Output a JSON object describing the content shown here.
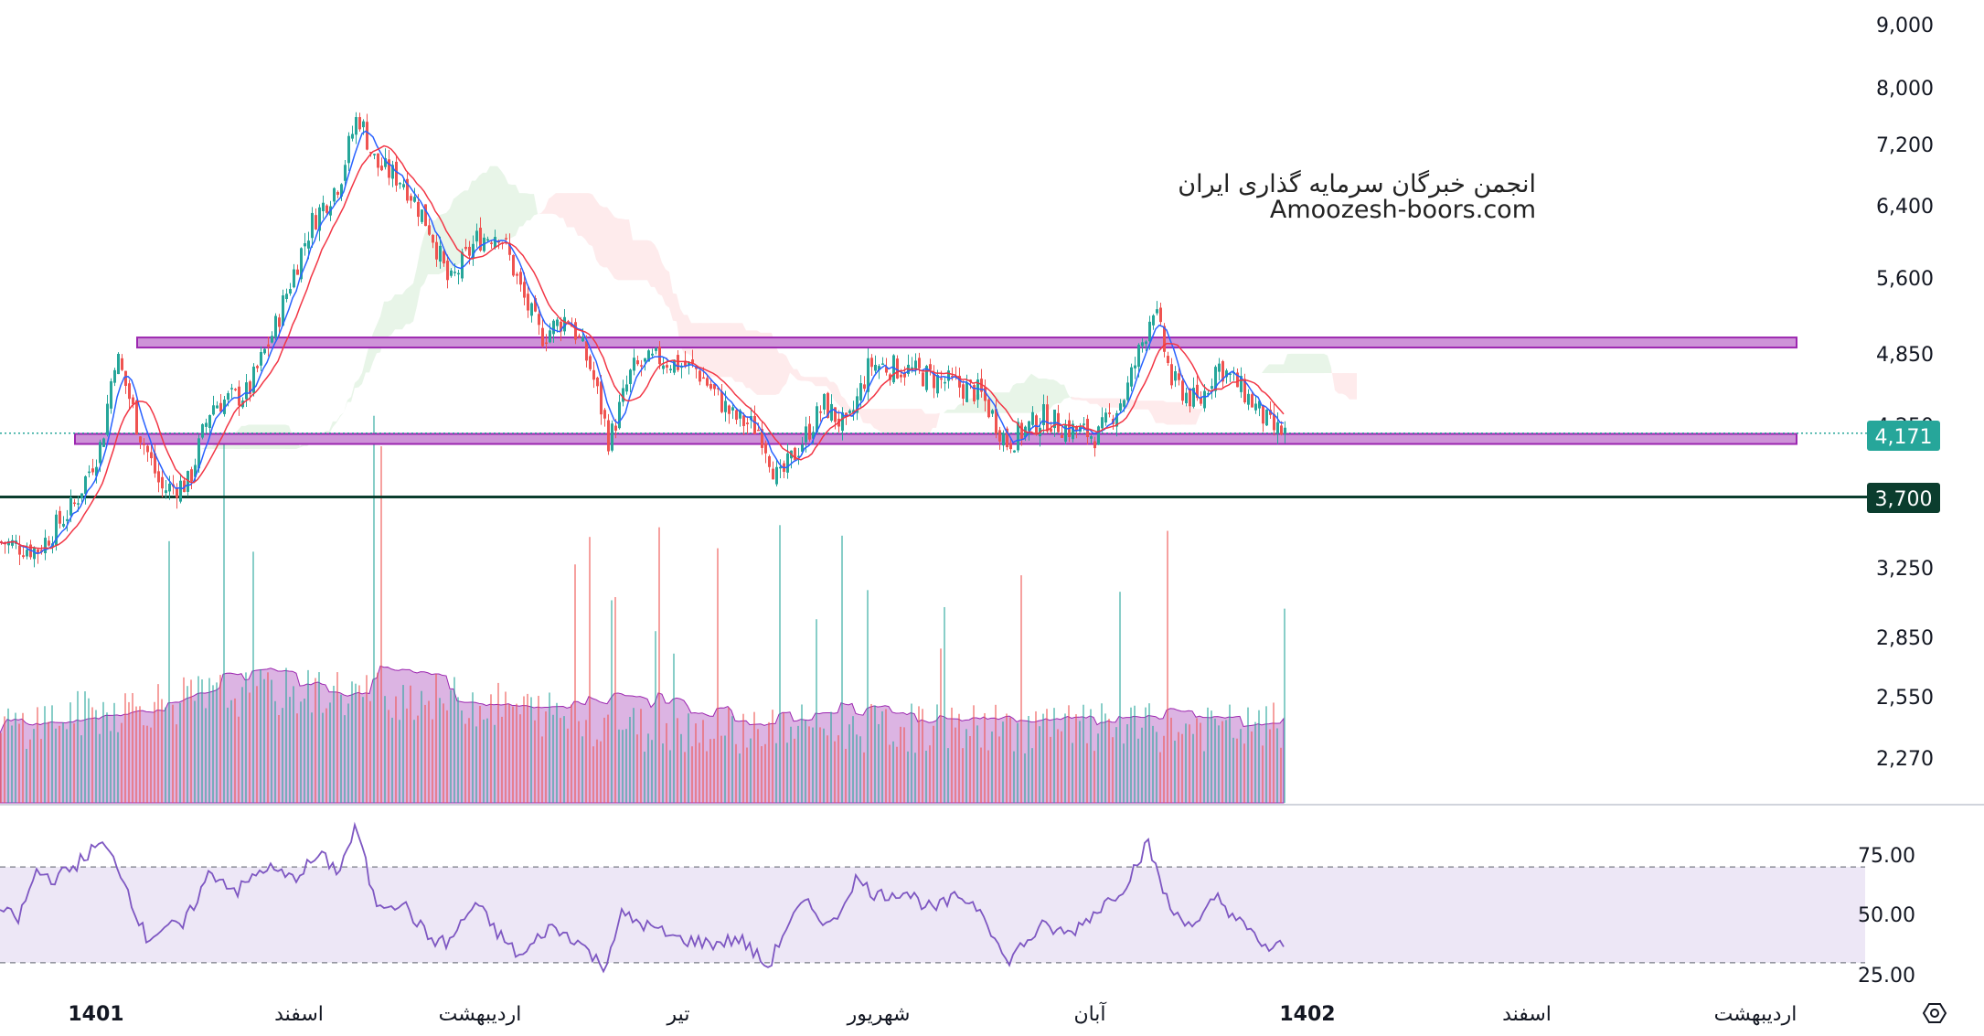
{
  "watermark": {
    "line1": "انجمن خبرگان سرمایه گذاری ایران",
    "line2": "Amoozesh-boors.com"
  },
  "price_axis": {
    "ticks": [
      "9,000",
      "8,000",
      "7,200",
      "6,400",
      "5,600",
      "4,850",
      "4,250",
      "3,250",
      "2,850",
      "2,550",
      "2,270"
    ]
  },
  "rsi_axis": {
    "ticks": [
      "75.00",
      "50.00",
      "25.00"
    ]
  },
  "time_axis": {
    "labels": [
      {
        "text": "1401",
        "bold": true
      },
      {
        "text": "اسفند",
        "bold": false
      },
      {
        "text": "اردیبهشت",
        "bold": false
      },
      {
        "text": "تیر",
        "bold": false
      },
      {
        "text": "شهریور",
        "bold": false
      },
      {
        "text": "آبان",
        "bold": false
      },
      {
        "text": "1402",
        "bold": true
      },
      {
        "text": "اسفند",
        "bold": false
      },
      {
        "text": "اردیبهشت",
        "bold": false
      }
    ]
  },
  "tags": {
    "last_price": "4,171",
    "support": "3,700"
  },
  "colors": {
    "up": "#26a69a",
    "down": "#ef5350",
    "ma_fast": "#2962ff",
    "ma_slow": "#f23645",
    "zone_fill": "#ce93d8",
    "zone_border": "#9c27b0",
    "support_line": "#0b3d2e",
    "rsi_line": "#7e57c2",
    "rsi_band": "#ede7f6"
  },
  "chart_data": {
    "type": "candlestick",
    "price_scale": "log",
    "price_range": [
      2100,
      9200
    ],
    "horizontal_levels": [
      {
        "name": "resistance-zone",
        "value": 4950
      },
      {
        "name": "support-zone",
        "value": 4130
      },
      {
        "name": "support-line",
        "value": 3700
      }
    ],
    "last_price": 4171,
    "price_keypoints": [
      [
        0,
        3400
      ],
      [
        40,
        3350
      ],
      [
        80,
        3650
      ],
      [
        110,
        4100
      ],
      [
        125,
        4850
      ],
      [
        150,
        4200
      ],
      [
        175,
        3750
      ],
      [
        205,
        3800
      ],
      [
        230,
        4400
      ],
      [
        270,
        4500
      ],
      [
        300,
        5100
      ],
      [
        340,
        6200
      ],
      [
        370,
        6700
      ],
      [
        390,
        7600
      ],
      [
        410,
        6900
      ],
      [
        440,
        6700
      ],
      [
        470,
        6100
      ],
      [
        490,
        5500
      ],
      [
        520,
        6000
      ],
      [
        545,
        6100
      ],
      [
        570,
        5400
      ],
      [
        590,
        5000
      ],
      [
        620,
        5200
      ],
      [
        645,
        4700
      ],
      [
        665,
        4100
      ],
      [
        690,
        4700
      ],
      [
        720,
        4800
      ],
      [
        760,
        4700
      ],
      [
        800,
        4300
      ],
      [
        830,
        4200
      ],
      [
        850,
        3800
      ],
      [
        875,
        4100
      ],
      [
        900,
        4400
      ],
      [
        925,
        4200
      ],
      [
        950,
        4750
      ],
      [
        990,
        4700
      ],
      [
        1030,
        4600
      ],
      [
        1070,
        4500
      ],
      [
        1100,
        4100
      ],
      [
        1140,
        4300
      ],
      [
        1170,
        4200
      ],
      [
        1200,
        4150
      ],
      [
        1230,
        4500
      ],
      [
        1250,
        5000
      ],
      [
        1260,
        5300
      ],
      [
        1280,
        4600
      ],
      [
        1310,
        4400
      ],
      [
        1330,
        4750
      ],
      [
        1360,
        4500
      ],
      [
        1390,
        4200
      ],
      [
        1405,
        4171
      ]
    ],
    "rsi_keypoints": [
      [
        0,
        52
      ],
      [
        20,
        48
      ],
      [
        40,
        68
      ],
      [
        60,
        65
      ],
      [
        80,
        70
      ],
      [
        110,
        80
      ],
      [
        130,
        70
      ],
      [
        160,
        40
      ],
      [
        180,
        45
      ],
      [
        200,
        45
      ],
      [
        230,
        68
      ],
      [
        260,
        60
      ],
      [
        290,
        70
      ],
      [
        320,
        65
      ],
      [
        350,
        75
      ],
      [
        370,
        68
      ],
      [
        390,
        87
      ],
      [
        410,
        55
      ],
      [
        440,
        55
      ],
      [
        470,
        40
      ],
      [
        490,
        38
      ],
      [
        520,
        55
      ],
      [
        545,
        42
      ],
      [
        570,
        32
      ],
      [
        600,
        45
      ],
      [
        630,
        40
      ],
      [
        660,
        28
      ],
      [
        680,
        50
      ],
      [
        710,
        45
      ],
      [
        740,
        40
      ],
      [
        780,
        38
      ],
      [
        810,
        40
      ],
      [
        840,
        28
      ],
      [
        860,
        45
      ],
      [
        880,
        55
      ],
      [
        910,
        45
      ],
      [
        935,
        65
      ],
      [
        960,
        58
      ],
      [
        990,
        60
      ],
      [
        1020,
        52
      ],
      [
        1050,
        58
      ],
      [
        1075,
        52
      ],
      [
        1100,
        30
      ],
      [
        1120,
        38
      ],
      [
        1140,
        45
      ],
      [
        1170,
        42
      ],
      [
        1200,
        52
      ],
      [
        1230,
        62
      ],
      [
        1255,
        80
      ],
      [
        1280,
        52
      ],
      [
        1310,
        45
      ],
      [
        1330,
        58
      ],
      [
        1360,
        45
      ],
      [
        1390,
        35
      ],
      [
        1405,
        38
      ]
    ],
    "rsi_levels": [
      70,
      30
    ]
  }
}
